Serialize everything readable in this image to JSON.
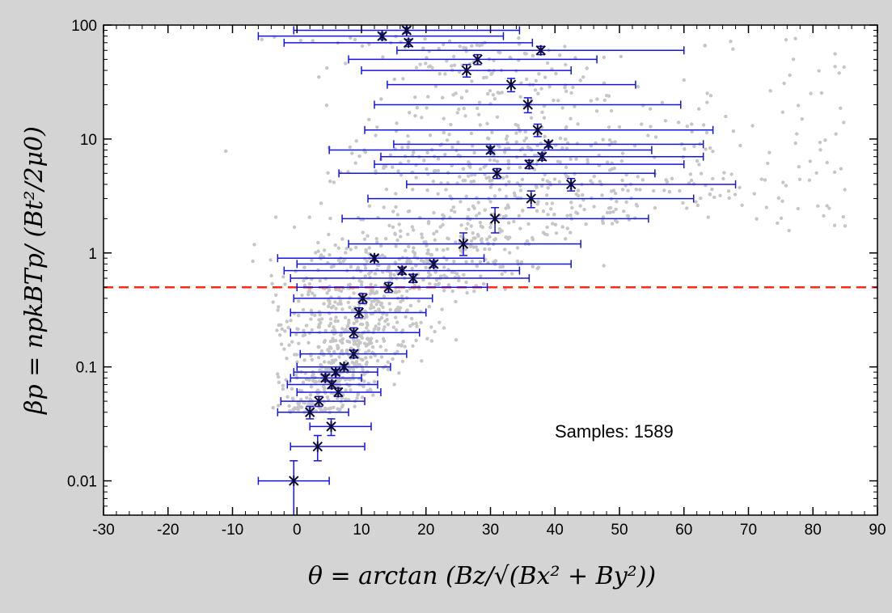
{
  "chart_data": {
    "type": "scatter",
    "x_axis": {
      "range": [
        -30,
        90
      ],
      "ticks": [
        -30,
        -20,
        -10,
        0,
        10,
        20,
        30,
        40,
        50,
        60,
        70,
        80,
        90
      ],
      "tick_labels": [
        "-30",
        "-20",
        "-10",
        "0",
        "10",
        "20",
        "30",
        "40",
        "50",
        "60",
        "70",
        "80",
        "90"
      ]
    },
    "y_axis": {
      "scale": "log",
      "range": [
        0.005,
        100
      ],
      "ticks": [
        0.01,
        0.1,
        1,
        10,
        100
      ],
      "tick_labels": [
        "0.01",
        "0.1",
        "1",
        "10",
        "100"
      ]
    },
    "xlabel": {
      "prefix": "θ = arctan (",
      "math": "Bz/√(Bx² + By²)",
      "suffix": ")"
    },
    "ylabel": "βp = npkBTp/ (Bt²/2μ0)",
    "annotation": "Samples: 1589",
    "threshold_line": {
      "y": 0.5,
      "color": "#ff2a1a",
      "style": "dashed"
    },
    "colors": {
      "scatter": "#c6c6c6",
      "errorbar": "#1515e0",
      "marker": "#0b0b33"
    },
    "grid": false,
    "binned_means": [
      {
        "y": 0.01,
        "x": -0.5,
        "xerr_lo": -6,
        "xerr_hi": 5,
        "y_lo": 0.005,
        "y_hi": 0.015
      },
      {
        "y": 0.02,
        "x": 3.2,
        "xerr_lo": -1,
        "xerr_hi": 10.5,
        "y_lo": 0.015,
        "y_hi": 0.025
      },
      {
        "y": 0.03,
        "x": 5.3,
        "xerr_lo": 2,
        "xerr_hi": 11.5,
        "y_lo": 0.025,
        "y_hi": 0.035
      },
      {
        "y": 0.04,
        "x": 2,
        "xerr_lo": -3,
        "xerr_hi": 8,
        "y_lo": 0.035,
        "y_hi": 0.045
      },
      {
        "y": 0.05,
        "x": 3.4,
        "xerr_lo": -2.5,
        "xerr_hi": 10.5,
        "y_lo": 0.045,
        "y_hi": 0.055
      },
      {
        "y": 0.06,
        "x": 6.4,
        "xerr_lo": 0,
        "xerr_hi": 13,
        "y_lo": 0.055,
        "y_hi": 0.065
      },
      {
        "y": 0.07,
        "x": 5.4,
        "xerr_lo": -1.5,
        "xerr_hi": 12.5,
        "y_lo": 0.065,
        "y_hi": 0.075
      },
      {
        "y": 0.08,
        "x": 4.4,
        "xerr_lo": -1,
        "xerr_hi": 10,
        "y_lo": 0.075,
        "y_hi": 0.085
      },
      {
        "y": 0.09,
        "x": 6,
        "xerr_lo": -0.5,
        "xerr_hi": 12.5,
        "y_lo": 0.085,
        "y_hi": 0.095
      },
      {
        "y": 0.1,
        "x": 7.3,
        "xerr_lo": 0,
        "xerr_hi": 14.5,
        "y_lo": 0.095,
        "y_hi": 0.105
      },
      {
        "y": 0.13,
        "x": 8.8,
        "xerr_lo": 0.5,
        "xerr_hi": 17,
        "y_lo": 0.12,
        "y_hi": 0.14
      },
      {
        "y": 0.2,
        "x": 8.8,
        "xerr_lo": -1,
        "xerr_hi": 19,
        "y_lo": 0.18,
        "y_hi": 0.22
      },
      {
        "y": 0.3,
        "x": 9.6,
        "xerr_lo": -1,
        "xerr_hi": 20,
        "y_lo": 0.27,
        "y_hi": 0.33
      },
      {
        "y": 0.4,
        "x": 10.2,
        "xerr_lo": -0.5,
        "xerr_hi": 21,
        "y_lo": 0.36,
        "y_hi": 0.44
      },
      {
        "y": 0.5,
        "x": 14.2,
        "xerr_lo": 0,
        "xerr_hi": 29.5,
        "y_lo": 0.45,
        "y_hi": 0.55
      },
      {
        "y": 0.6,
        "x": 18,
        "xerr_lo": -1,
        "xerr_hi": 36,
        "y_lo": 0.55,
        "y_hi": 0.65
      },
      {
        "y": 0.7,
        "x": 16.3,
        "xerr_lo": -2,
        "xerr_hi": 34.5,
        "y_lo": 0.65,
        "y_hi": 0.75
      },
      {
        "y": 0.8,
        "x": 21.2,
        "xerr_lo": 0,
        "xerr_hi": 42.5,
        "y_lo": 0.75,
        "y_hi": 0.85
      },
      {
        "y": 0.9,
        "x": 12,
        "xerr_lo": -3,
        "xerr_hi": 29,
        "y_lo": 0.85,
        "y_hi": 0.95
      },
      {
        "y": 1.2,
        "x": 25.8,
        "xerr_lo": 8,
        "xerr_hi": 44,
        "y_lo": 0.95,
        "y_hi": 1.5
      },
      {
        "y": 2,
        "x": 30.7,
        "xerr_lo": 7,
        "xerr_hi": 54.5,
        "y_lo": 1.5,
        "y_hi": 2.5
      },
      {
        "y": 3,
        "x": 36.3,
        "xerr_lo": 11,
        "xerr_hi": 61.5,
        "y_lo": 2.5,
        "y_hi": 3.5
      },
      {
        "y": 4,
        "x": 42.5,
        "xerr_lo": 17,
        "xerr_hi": 68,
        "y_lo": 3.5,
        "y_hi": 4.5
      },
      {
        "y": 5,
        "x": 31,
        "xerr_lo": 6.5,
        "xerr_hi": 55.5,
        "y_lo": 4.5,
        "y_hi": 5.5
      },
      {
        "y": 6,
        "x": 36,
        "xerr_lo": 12,
        "xerr_hi": 60,
        "y_lo": 5.5,
        "y_hi": 6.5
      },
      {
        "y": 7,
        "x": 38,
        "xerr_lo": 13,
        "xerr_hi": 63,
        "y_lo": 6.5,
        "y_hi": 7.5
      },
      {
        "y": 8,
        "x": 30,
        "xerr_lo": 5,
        "xerr_hi": 55,
        "y_lo": 7.5,
        "y_hi": 8.5
      },
      {
        "y": 9,
        "x": 39,
        "xerr_lo": 15,
        "xerr_hi": 63,
        "y_lo": 8.5,
        "y_hi": 9.5
      },
      {
        "y": 12,
        "x": 37.3,
        "xerr_lo": 10.5,
        "xerr_hi": 64.5,
        "y_lo": 10.5,
        "y_hi": 13.5
      },
      {
        "y": 20,
        "x": 35.8,
        "xerr_lo": 12,
        "xerr_hi": 59.5,
        "y_lo": 17,
        "y_hi": 23
      },
      {
        "y": 30,
        "x": 33.2,
        "xerr_lo": 14,
        "xerr_hi": 52.5,
        "y_lo": 26,
        "y_hi": 34
      },
      {
        "y": 40,
        "x": 26.3,
        "xerr_lo": 10,
        "xerr_hi": 42.5,
        "y_lo": 35,
        "y_hi": 45
      },
      {
        "y": 50,
        "x": 28,
        "xerr_lo": 8,
        "xerr_hi": 46.5,
        "y_lo": 45,
        "y_hi": 55
      },
      {
        "y": 60,
        "x": 37.8,
        "xerr_lo": 15.5,
        "xerr_hi": 60,
        "y_lo": 55,
        "y_hi": 65
      },
      {
        "y": 70,
        "x": 17.3,
        "xerr_lo": -2,
        "xerr_hi": 36.5,
        "y_lo": 65,
        "y_hi": 75
      },
      {
        "y": 80,
        "x": 13.2,
        "xerr_lo": -6,
        "xerr_hi": 32,
        "y_lo": 75,
        "y_hi": 85
      },
      {
        "y": 90,
        "x": 17,
        "xerr_lo": -0.5,
        "xerr_hi": 34.5,
        "y_lo": 85,
        "y_hi": 95
      }
    ]
  }
}
